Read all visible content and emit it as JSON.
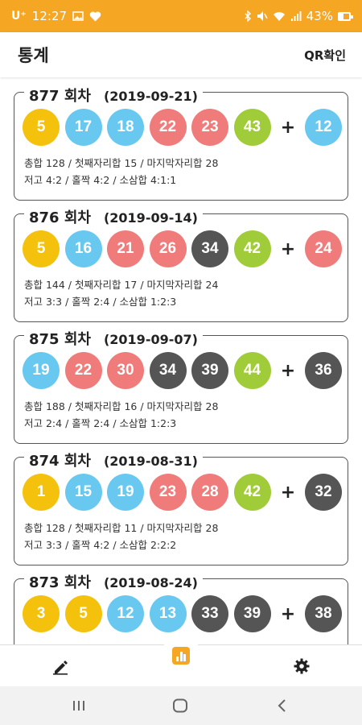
{
  "status_bar": {
    "carrier": "U⁺",
    "time": "12:27",
    "battery": "43%",
    "battery_level": 0.43,
    "icons": [
      "image-icon",
      "heart-icon",
      "bluetooth-icon",
      "mute-icon",
      "wifi-icon",
      "signal-icon"
    ]
  },
  "app_bar": {
    "title": "통계",
    "qr_label": "QR확인"
  },
  "colors": {
    "accent": "#f5a623",
    "yellow": "#f4c20d",
    "blue": "#69c8f0",
    "red": "#f07b7b",
    "gray": "#555555",
    "green": "#a0cc3a"
  },
  "rounds": [
    {
      "round": "877 회차",
      "date": "(2019-09-21)",
      "numbers": [
        5,
        17,
        18,
        22,
        23,
        43
      ],
      "bonus": 12,
      "stat_line1": "총합 128 / 첫째자리합 15 / 마지막자리합 28",
      "stat_line2": "저고 4:2 / 홀짝 4:2 / 소삼합 4:1:1"
    },
    {
      "round": "876 회차",
      "date": "(2019-09-14)",
      "numbers": [
        5,
        16,
        21,
        26,
        34,
        42
      ],
      "bonus": 24,
      "stat_line1": "총합 144 / 첫째자리합 17 / 마지막자리합 24",
      "stat_line2": "저고 3:3 / 홀짝 2:4 / 소삼합 1:2:3"
    },
    {
      "round": "875 회차",
      "date": "(2019-09-07)",
      "numbers": [
        19,
        22,
        30,
        34,
        39,
        44
      ],
      "bonus": 36,
      "stat_line1": "총합 188 / 첫째자리합 16 / 마지막자리합 28",
      "stat_line2": "저고 2:4 / 홀짝 2:4 / 소삼합 1:2:3"
    },
    {
      "round": "874 회차",
      "date": "(2019-08-31)",
      "numbers": [
        1,
        15,
        19,
        23,
        28,
        42
      ],
      "bonus": 32,
      "stat_line1": "총합 128 / 첫째자리합 11 / 마지막자리합 28",
      "stat_line2": "저고 3:3 / 홀짝 4:2 / 소삼합 2:2:2"
    },
    {
      "round": "873 회차",
      "date": "(2019-08-24)",
      "numbers": [
        3,
        5,
        12,
        13,
        33,
        39
      ],
      "bonus": 38,
      "stat_line1": "",
      "stat_line2": ""
    }
  ],
  "plus_symbol": "+",
  "bottom_nav": {
    "left_icon": "pencil-icon",
    "center_icon": "bar-chart-icon",
    "right_icon": "gear-icon"
  },
  "system_nav": {
    "icons": [
      "recent-apps-icon",
      "home-icon",
      "back-icon"
    ]
  }
}
